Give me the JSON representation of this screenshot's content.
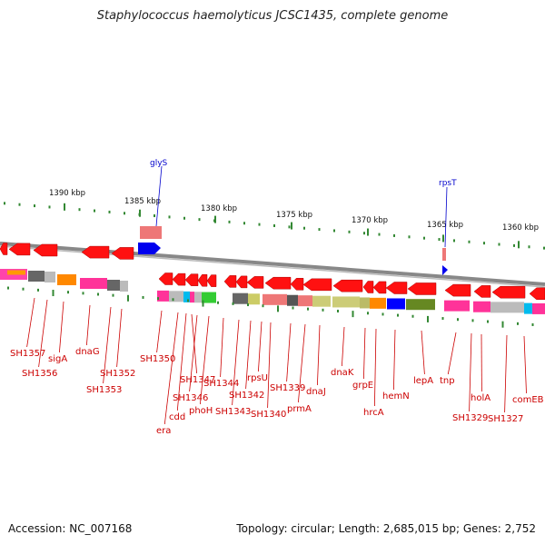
{
  "title": "Staphylococcus haemolyticus JCSC1435, complete genome",
  "footer": {
    "accession": "Accession: NC_007168",
    "topology": "Topology: circular; Length: 2,685,015 bp; Genes: 2,752"
  },
  "scale": {
    "labels": [
      "1390 kbp",
      "1385 kbp",
      "1380 kbp",
      "1375 kbp",
      "1370 kbp",
      "1365 kbp",
      "1360 kbp"
    ]
  },
  "colors": {
    "gene_label": "#cc0000",
    "rna_label": "#0000cc",
    "tick": "#338833",
    "backbone": "#888888"
  },
  "rna_genes": [
    "glyS",
    "rpsT"
  ],
  "gene_labels": [
    "SH1357",
    "SH1356",
    "sigA",
    "dnaG",
    "SH1353",
    "SH1352",
    "SH1350",
    "era",
    "cdd",
    "SH1347",
    "SH1346",
    "phoH",
    "SH1344",
    "SH1343",
    "SH1342",
    "rpsU",
    "SH1340",
    "SH1339",
    "prmA",
    "dnaJ",
    "dnaK",
    "grpE",
    "hrcA",
    "hemN",
    "lepA",
    "tnp",
    "SH1329",
    "holA",
    "SH1327",
    "comEB"
  ]
}
